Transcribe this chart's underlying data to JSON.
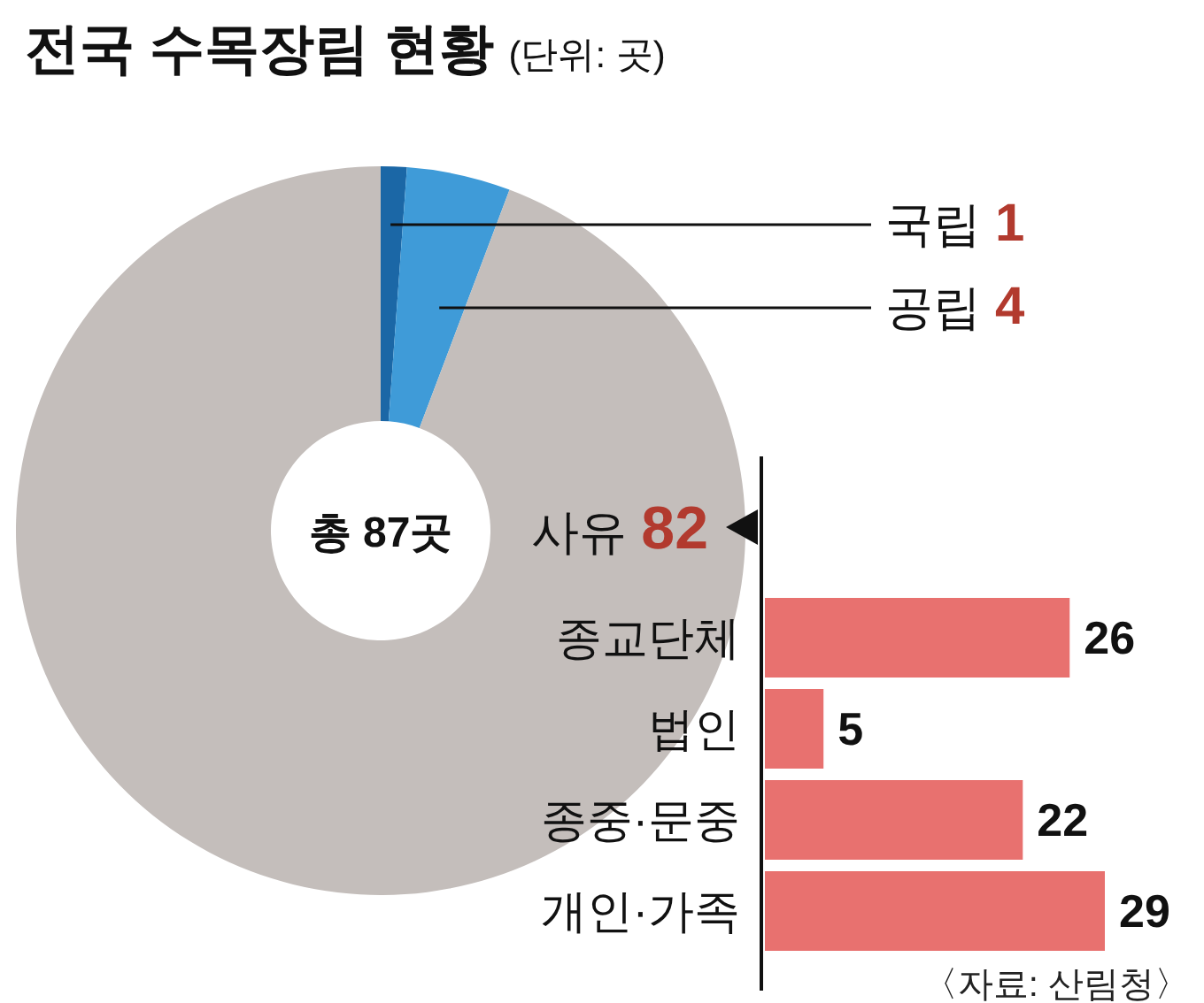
{
  "chart_data": [
    {
      "type": "donut",
      "title": "전국 수목장림 현황",
      "subtitle": "(단위: 곳)",
      "categories": [
        "국립",
        "공립",
        "사유"
      ],
      "values": [
        1,
        4,
        82
      ],
      "colors": [
        "#1b67a6",
        "#3f9bd8",
        "#c4bebb"
      ],
      "data_labels": true,
      "annotations": [
        "총 87곳"
      ]
    },
    {
      "type": "bar",
      "orientation": "horizontal",
      "categories": [
        "종교단체",
        "법인",
        "종중·문중",
        "개인·가족"
      ],
      "values": [
        26,
        5,
        22,
        29
      ],
      "color": "#e8716f",
      "data_labels": true,
      "annotations": [
        "〈자료: 산림청〉"
      ]
    }
  ]
}
